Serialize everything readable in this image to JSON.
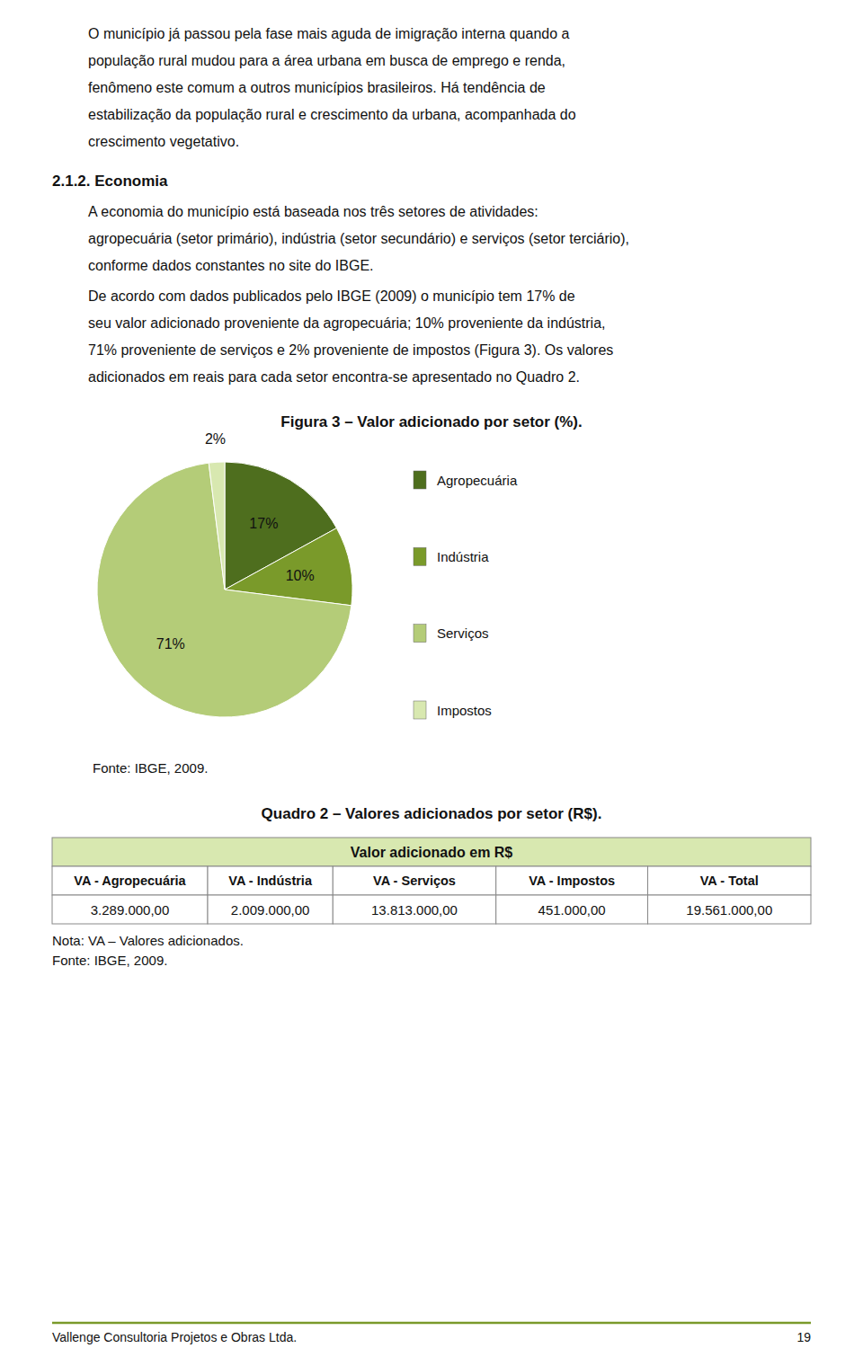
{
  "chart_data": [
    {
      "type": "pie",
      "title": "Figura 3 – Valor adicionado por setor (%).",
      "categories": [
        "Agropecuária",
        "Indústria",
        "Serviços",
        "Impostos"
      ],
      "values": [
        17,
        10,
        71,
        2
      ],
      "value_labels": [
        "17%",
        "10%",
        "71%",
        "2%"
      ],
      "colors": [
        "#4e6e1e",
        "#7a9a2a",
        "#b4cc78",
        "#d8e8b0"
      ],
      "data_labels": true,
      "legend": "right",
      "annotations": [
        "Fonte: IBGE, 2009."
      ]
    },
    {
      "type": "table",
      "title": "Quadro 2 – Valores adicionados por setor (R$).",
      "subtitle": "Valor adicionado em R$",
      "color": "#d8e8b0",
      "categories": [
        "VA - Agropecuária",
        "VA - Indústria",
        "VA - Serviços",
        "VA - Impostos",
        "VA - Total"
      ],
      "values": [
        3289000,
        2009000,
        13813000,
        451000,
        19561000
      ],
      "value_labels": [
        "3.289.000,00",
        "2.009.000,00",
        "13.813.000,00",
        "451.000,00",
        "19.561.000,00"
      ],
      "annotations": [
        "Nota: VA – Valores adicionados.",
        "Fonte: IBGE, 2009."
      ]
    }
  ],
  "page": {
    "paragraphs": [
      [
        "O município já passou pela fase mais aguda de imigração interna quando a",
        "população rural mudou para a área urbana em busca de emprego e renda,",
        "fenômeno este comum a outros municípios brasileiros. Há tendência de",
        "estabilização da população rural e crescimento da urbana, acompanhada do",
        "crescimento vegetativo."
      ],
      [
        "A economia do município está baseada nos três setores de atividades:",
        "agropecuária (setor primário), indústria (setor secundário) e serviços (setor terciário),",
        "conforme dados constantes no site do IBGE."
      ],
      [
        "De acordo com dados publicados pelo IBGE (2009) o município tem 17% de",
        "seu valor adicionado proveniente da agropecuária; 10% proveniente da indústria,",
        "71% proveniente de serviços e 2% proveniente de impostos (Figura 3). Os valores",
        "adicionados em reais para cada setor encontra-se apresentado no Quadro 2."
      ]
    ],
    "section_title": "2.1.2. Economia",
    "footer": {
      "text": "Vallenge Consultoria Projetos e Obras Ltda.",
      "page": "19",
      "color": "#7a9a2a"
    }
  }
}
